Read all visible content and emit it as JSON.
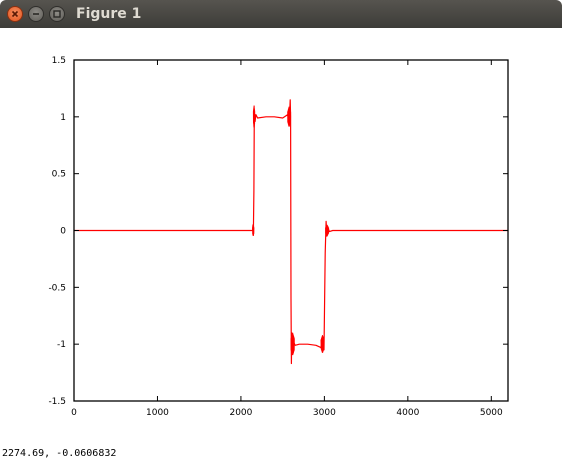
{
  "window": {
    "title": "Figure 1"
  },
  "status": {
    "coordinates": "2274.69, -0.0606832"
  },
  "colors": {
    "titlebar": "#3d3c38",
    "close": "#e2541e",
    "trace": "#ff0000"
  },
  "chart_data": {
    "type": "line",
    "xlim": [
      0,
      5200
    ],
    "ylim": [
      -1.5,
      1.5
    ],
    "xticks": [
      "0",
      "1000",
      "2000",
      "3000",
      "4000",
      "5000"
    ],
    "yticks": [
      "1.5",
      "1",
      "0.5",
      "0",
      "-0.5",
      "-1",
      "-1.5"
    ],
    "xtick_values": [
      0,
      1000,
      2000,
      3000,
      4000,
      5000
    ],
    "ytick_values": [
      1.5,
      1,
      0.5,
      0,
      -0.5,
      -1,
      -1.5
    ],
    "grid": false,
    "series": [
      {
        "color": "#ff0000",
        "x": [
          0,
          2140,
          2145,
          2150,
          2155,
          2160,
          2170,
          2180,
          2200,
          2300,
          2400,
          2500,
          2560,
          2580,
          2590,
          2595,
          2600,
          2605,
          2610,
          2620,
          2630,
          2650,
          2700,
          2800,
          2900,
          2960,
          2985,
          2995,
          3010,
          3020,
          3025,
          3030,
          3040,
          3060,
          3100,
          5200
        ],
        "y": [
          0,
          0,
          0.05,
          0,
          0.35,
          1.05,
          0.96,
          1.02,
          0.99,
          1.0,
          1.0,
          0.99,
          1.02,
          0.96,
          1.15,
          1.0,
          -0.6,
          -1.17,
          -0.9,
          -1.05,
          -0.98,
          -1.01,
          -1.0,
          -1.0,
          -1.01,
          -1.03,
          -0.94,
          -1.05,
          -0.2,
          0.08,
          0.02,
          -0.05,
          0.03,
          -0.01,
          0,
          0
        ]
      }
    ]
  }
}
